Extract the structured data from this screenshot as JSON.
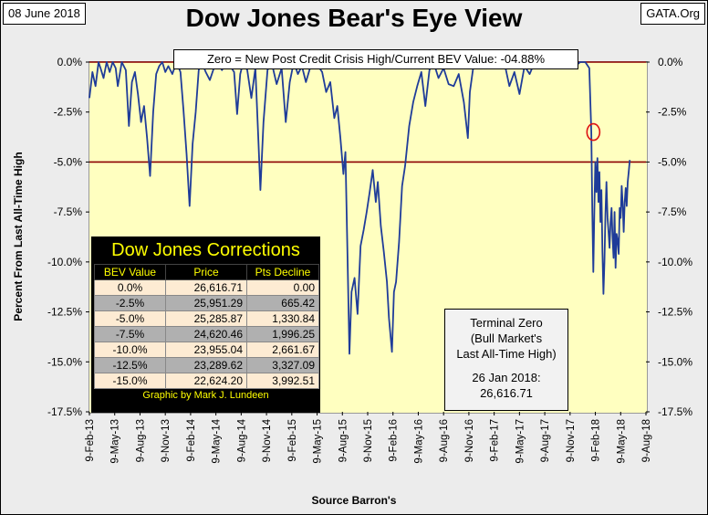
{
  "header": {
    "date": "08 June 2018",
    "source_site": "GATA.Org",
    "title": "Dow Jones Bear's Eye View"
  },
  "zero_note": "Zero = New Post Credit Crisis High/Current BEV Value:  -04.88%",
  "colors": {
    "plot_bg": "#ffffc0",
    "line": "#1f3c99",
    "threshold": "#8b0000",
    "table_title": "#ffff00"
  },
  "corrections_table": {
    "title": "Dow Jones Corrections",
    "headers": [
      "BEV Value",
      "Price",
      "Pts Decline"
    ],
    "rows": [
      [
        "0.0%",
        "26,616.71",
        "0.00"
      ],
      [
        "-2.5%",
        "25,951.29",
        "665.42"
      ],
      [
        "-5.0%",
        "25,285.87",
        "1,330.84"
      ],
      [
        "-7.5%",
        "24,620.46",
        "1,996.25"
      ],
      [
        "-10.0%",
        "23,955.04",
        "2,661.67"
      ],
      [
        "-12.5%",
        "23,289.62",
        "3,327.09"
      ],
      [
        "-15.0%",
        "22,624.20",
        "3,992.51"
      ]
    ],
    "credit": "Graphic by Mark J. Lundeen"
  },
  "terminal_zero": {
    "line1": "Terminal Zero",
    "line2": "(Bull Market's",
    "line3": "Last All-Time High)",
    "line4": "26 Jan 2018:",
    "line5": "26,616.71"
  },
  "chart_data": {
    "type": "line",
    "title": "Dow Jones Bear's Eye View",
    "xlabel": "Source Barron's",
    "ylabel": "Percent From Last All-Time High",
    "ylim": [
      -17.5,
      0
    ],
    "xlim": [
      2013.1,
      2018.6
    ],
    "y_ticks": [
      "0.0%",
      "-2.5%",
      "-5.0%",
      "-7.5%",
      "-10.0%",
      "-12.5%",
      "-15.0%",
      "-17.5%"
    ],
    "x_ticks": [
      "9-Feb-13",
      "9-May-13",
      "9-Aug-13",
      "9-Nov-13",
      "9-Feb-14",
      "9-May-14",
      "9-Aug-14",
      "9-Nov-14",
      "9-Feb-15",
      "9-May-15",
      "9-Aug-15",
      "9-Nov-15",
      "9-Feb-16",
      "9-May-16",
      "9-Aug-16",
      "9-Nov-16",
      "9-Feb-17",
      "9-May-17",
      "9-Aug-17",
      "9-Nov-17",
      "9-Feb-18",
      "9-May-18",
      "9-Aug-18"
    ],
    "reference_lines": [
      0,
      -5
    ],
    "highlight_point": {
      "x": 2018.08,
      "y": -3.5
    },
    "series": [
      {
        "name": "Dow Jones BEV",
        "x": [
          2013.1,
          2013.13,
          2013.16,
          2013.19,
          2013.21,
          2013.24,
          2013.27,
          2013.3,
          2013.33,
          2013.36,
          2013.38,
          2013.42,
          2013.46,
          2013.49,
          2013.52,
          2013.55,
          2013.58,
          2013.61,
          2013.64,
          2013.67,
          2013.7,
          2013.73,
          2013.76,
          2013.79,
          2013.82,
          2013.85,
          2013.88,
          2013.92,
          2013.96,
          2014.0,
          2014.03,
          2014.06,
          2014.09,
          2014.12,
          2014.15,
          2014.18,
          2014.21,
          2014.25,
          2014.29,
          2014.33,
          2014.37,
          2014.41,
          2014.45,
          2014.49,
          2014.53,
          2014.56,
          2014.59,
          2014.62,
          2014.66,
          2014.7,
          2014.74,
          2014.77,
          2014.79,
          2014.82,
          2014.86,
          2014.9,
          2014.95,
          2015.0,
          2015.04,
          2015.08,
          2015.12,
          2015.16,
          2015.2,
          2015.24,
          2015.28,
          2015.32,
          2015.36,
          2015.4,
          2015.44,
          2015.48,
          2015.52,
          2015.55,
          2015.58,
          2015.61,
          2015.63,
          2015.65,
          2015.67,
          2015.69,
          2015.72,
          2015.75,
          2015.78,
          2015.81,
          2015.84,
          2015.87,
          2015.9,
          2015.93,
          2015.95,
          2015.98,
          2016.01,
          2016.04,
          2016.06,
          2016.09,
          2016.11,
          2016.13,
          2016.16,
          2016.19,
          2016.22,
          2016.26,
          2016.3,
          2016.34,
          2016.38,
          2016.42,
          2016.46,
          2016.5,
          2016.55,
          2016.6,
          2016.65,
          2016.7,
          2016.75,
          2016.8,
          2016.84,
          2016.86,
          2016.9,
          2016.95,
          2017.0,
          2017.05,
          2017.1,
          2017.15,
          2017.2,
          2017.25,
          2017.3,
          2017.35,
          2017.4,
          2017.45,
          2017.5,
          2017.55,
          2017.6,
          2017.65,
          2017.7,
          2017.75,
          2017.8,
          2017.85,
          2017.9,
          2017.95,
          2018.0,
          2018.04,
          2018.06,
          2018.07,
          2018.08,
          2018.09,
          2018.1,
          2018.11,
          2018.12,
          2018.13,
          2018.14,
          2018.15,
          2018.16,
          2018.17,
          2018.18,
          2018.19,
          2018.2,
          2018.21,
          2018.22,
          2018.23,
          2018.24,
          2018.25,
          2018.26,
          2018.27,
          2018.28,
          2018.29,
          2018.3,
          2018.31,
          2018.32,
          2018.33,
          2018.34,
          2018.35,
          2018.36,
          2018.37,
          2018.38,
          2018.39,
          2018.4,
          2018.41,
          2018.42,
          2018.43,
          2018.44
        ],
        "values": [
          -1.8,
          -0.5,
          -1.2,
          0.0,
          -0.3,
          -0.8,
          0.0,
          -0.5,
          0.0,
          -0.3,
          -1.2,
          0.0,
          -0.4,
          -3.2,
          -1.0,
          -0.5,
          -1.6,
          -3.0,
          -2.2,
          -3.8,
          -5.7,
          -2.5,
          -0.6,
          -0.2,
          0.0,
          -0.5,
          -0.2,
          -0.6,
          0.0,
          -0.5,
          -2.4,
          -4.6,
          -7.2,
          -4.1,
          -2.5,
          -0.4,
          0.0,
          -0.5,
          -0.9,
          -0.3,
          0.0,
          -0.4,
          0.0,
          -0.2,
          -0.5,
          -2.6,
          -0.6,
          0.0,
          -0.4,
          -1.8,
          -0.3,
          -3.9,
          -6.4,
          -3.0,
          -0.4,
          0.0,
          -1.1,
          -0.3,
          -3.0,
          -1.0,
          0.0,
          -0.6,
          -0.2,
          -1.0,
          -0.3,
          0.0,
          -0.2,
          -0.5,
          -1.5,
          -1.0,
          -2.8,
          -2.2,
          -3.8,
          -5.6,
          -4.5,
          -9.5,
          -14.6,
          -11.5,
          -10.8,
          -12.6,
          -9.2,
          -8.4,
          -7.5,
          -6.5,
          -5.4,
          -7.0,
          -6.0,
          -8.2,
          -9.5,
          -11.0,
          -12.8,
          -14.5,
          -11.5,
          -11.0,
          -9.0,
          -6.2,
          -5.2,
          -3.2,
          -2.0,
          -1.2,
          -0.5,
          -2.2,
          -0.4,
          0.0,
          -0.8,
          -0.3,
          -1.1,
          -1.2,
          -0.6,
          -2.0,
          -3.8,
          -1.5,
          0.0,
          -0.3,
          0.0,
          0.0,
          0.0,
          -0.2,
          0.0,
          -1.2,
          -0.5,
          -1.6,
          -0.2,
          -0.6,
          0.0,
          0.0,
          -0.3,
          0.0,
          -0.2,
          0.0,
          0.0,
          0.0,
          -0.2,
          0.0,
          0.0,
          -0.3,
          -3.5,
          -7.5,
          -10.5,
          -7.5,
          -5.0,
          -6.5,
          -4.8,
          -7.0,
          -5.5,
          -8.0,
          -6.4,
          -9.5,
          -11.6,
          -10.0,
          -7.6,
          -6.0,
          -7.8,
          -8.5,
          -9.3,
          -8.0,
          -7.3,
          -8.8,
          -9.8,
          -7.5,
          -10.3,
          -8.6,
          -8.9,
          -9.6,
          -7.3,
          -7.8,
          -6.2,
          -7.1,
          -8.5,
          -7.0,
          -6.3,
          -7.2,
          -6.0,
          -5.5,
          -4.9
        ]
      }
    ]
  }
}
